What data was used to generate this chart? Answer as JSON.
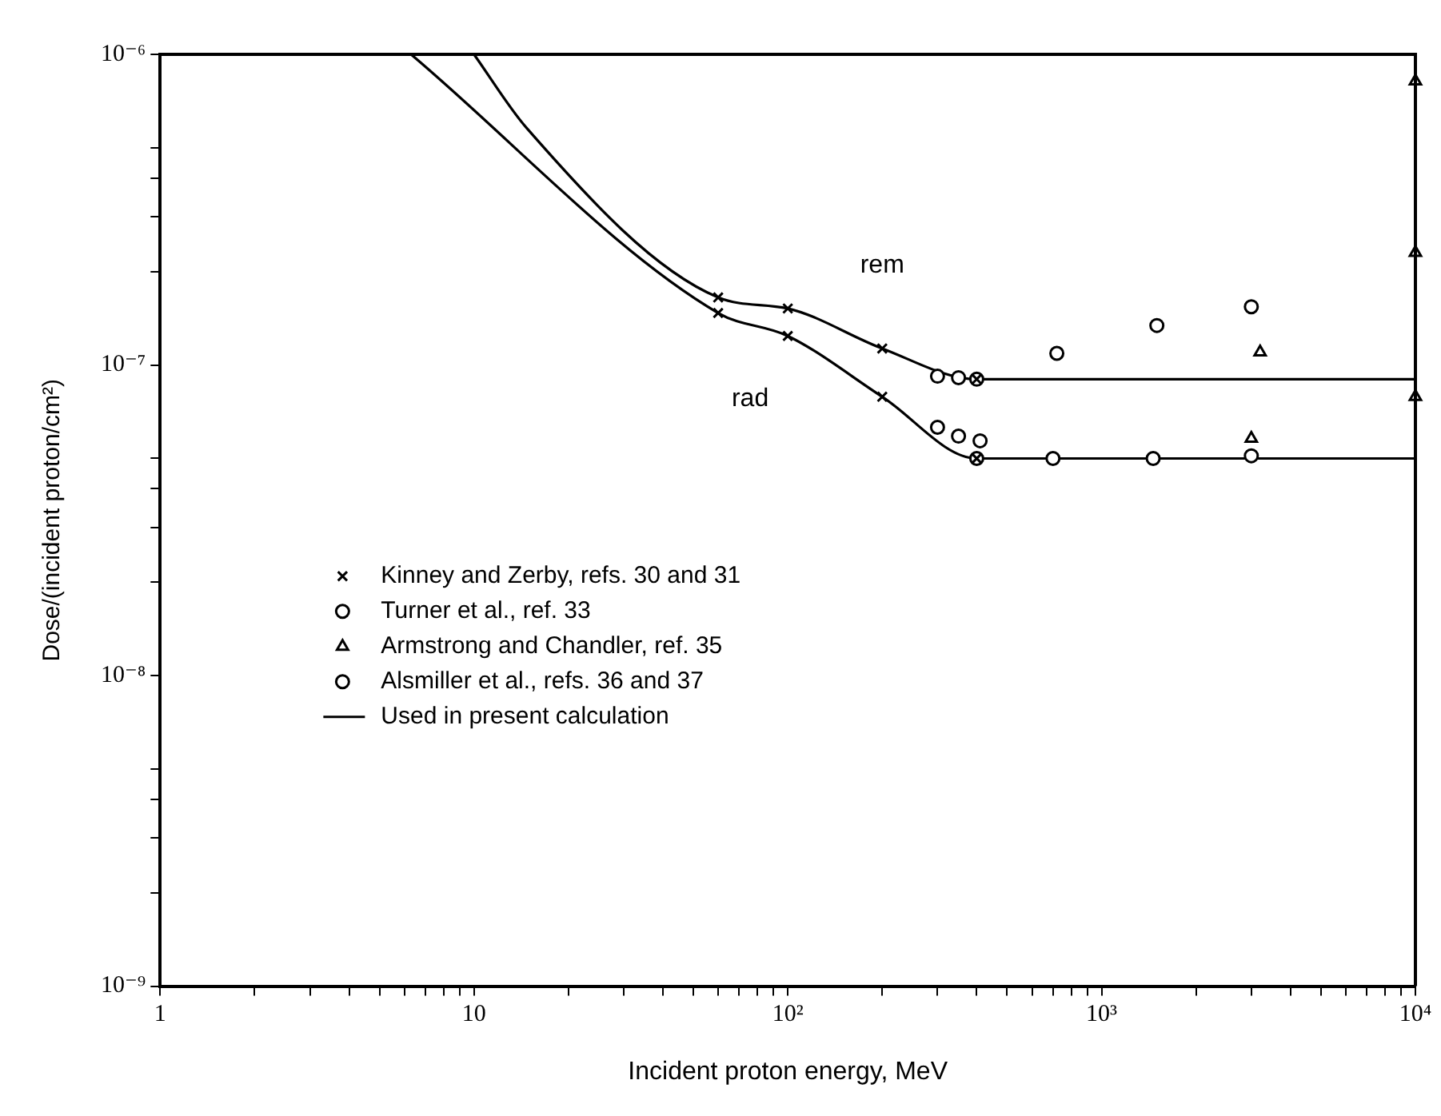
{
  "chart_data": {
    "type": "scatter",
    "xlabel": "Incident proton energy, MeV",
    "ylabel": "Dose/(incident proton/cm²)",
    "log": "xy",
    "grid": false,
    "legend": "left",
    "xlim": [
      1,
      10000
    ],
    "ylim": [
      1e-09,
      1e-06
    ],
    "xticks": [
      1,
      {
        "value": 2,
        "label": null
      },
      {
        "value": 3,
        "label": null
      },
      {
        "value": 4,
        "label": null
      },
      {
        "value": 5,
        "label": null
      },
      {
        "value": 6,
        "label": null
      },
      {
        "value": 7,
        "label": null
      },
      {
        "value": 8,
        "label": null
      },
      {
        "value": 9,
        "label": null
      },
      10,
      {
        "value": 20,
        "label": null
      },
      {
        "value": 30,
        "label": null
      },
      {
        "value": 40,
        "label": null
      },
      {
        "value": 50,
        "label": null
      },
      {
        "value": 60,
        "label": null
      },
      {
        "value": 70,
        "label": null
      },
      {
        "value": 80,
        "label": null
      },
      {
        "value": 90,
        "label": null
      },
      {
        "value": 100,
        "label": "10²"
      },
      {
        "value": 200,
        "label": null
      },
      {
        "value": 300,
        "label": null
      },
      {
        "value": 400,
        "label": null
      },
      {
        "value": 500,
        "label": null
      },
      {
        "value": 600,
        "label": null
      },
      {
        "value": 700,
        "label": null
      },
      {
        "value": 800,
        "label": null
      },
      {
        "value": 900,
        "label": null
      },
      {
        "value": 1000,
        "label": "10³"
      },
      {
        "value": 2000,
        "label": null
      },
      {
        "value": 3000,
        "label": null
      },
      {
        "value": 4000,
        "label": null
      },
      {
        "value": 5000,
        "label": null
      },
      {
        "value": 6000,
        "label": null
      },
      {
        "value": 7000,
        "label": null
      },
      {
        "value": 8000,
        "label": null
      },
      {
        "value": 9000,
        "label": null
      },
      {
        "value": 10000,
        "label": "10⁴"
      }
    ],
    "yticks": [
      {
        "value": 1e-09,
        "label": "10⁻⁹"
      },
      {
        "value": 2e-09,
        "label": null
      },
      {
        "value": 3e-09,
        "label": null
      },
      {
        "value": 4e-09,
        "label": null
      },
      {
        "value": 5e-09,
        "label": null
      },
      {
        "value": 1e-08,
        "label": "10⁻⁸"
      },
      {
        "value": 2e-08,
        "label": null
      },
      {
        "value": 3e-08,
        "label": null
      },
      {
        "value": 4e-08,
        "label": null
      },
      {
        "value": 5e-08,
        "label": null
      },
      {
        "value": 1e-07,
        "label": "10⁻⁷"
      },
      {
        "value": 2e-07,
        "label": null
      },
      {
        "value": 3e-07,
        "label": null
      },
      {
        "value": 4e-07,
        "label": null
      },
      {
        "value": 5e-07,
        "label": null
      },
      {
        "value": 1e-06,
        "label": "10⁻⁶"
      }
    ],
    "series": [
      {
        "name": "Kinney and Zerby, refs. 30 and 31",
        "type": "scatter",
        "marker": "cross",
        "color": "#000000",
        "x": [
          60,
          100,
          200,
          400,
          60,
          100,
          200,
          400
        ],
        "values": [
          1.65e-07,
          1.52e-07,
          1.13e-07,
          9e-08,
          1.47e-07,
          1.24e-07,
          7.9e-08,
          5e-08
        ]
      },
      {
        "name": "Turner et al., ref. 33",
        "type": "scatter",
        "marker": "circle",
        "color": "#000000",
        "x": [
          300,
          350,
          300,
          350,
          410
        ],
        "values": [
          9.2e-08,
          9.1e-08,
          6.3e-08,
          5.9e-08,
          5.7e-08
        ]
      },
      {
        "name": "Armstrong and Chandler, ref. 35",
        "type": "scatter",
        "marker": "triangle",
        "color": "#000000",
        "x": [
          3200,
          3000,
          10000,
          10000,
          10000
        ],
        "values": [
          1.1e-07,
          5.8e-08,
          8.2e-07,
          2.3e-07,
          7.9e-08
        ]
      },
      {
        "name": "Alsmiller et al., refs. 36 and 37",
        "type": "scatter",
        "marker": "circle",
        "color": "#000000",
        "x": [
          400,
          720,
          1500,
          3000,
          400,
          700,
          1460,
          3000
        ],
        "values": [
          9e-08,
          1.09e-07,
          1.34e-07,
          1.54e-07,
          5e-08,
          5e-08,
          5e-08,
          5.1e-08
        ]
      },
      {
        "name": "Used in present calculation",
        "type": "line",
        "marker": "none",
        "line_style": "solid",
        "color": "#000000",
        "x": [
          10,
          14.7,
          60,
          100,
          200,
          400,
          10000
        ],
        "values": [
          1e-06,
          5.8e-07,
          1.65e-07,
          1.52e-07,
          1.13e-07,
          9e-08,
          9e-08
        ]
      },
      {
        "type": "line",
        "marker": "none",
        "line_style": "solid",
        "color": "#000000",
        "x": [
          6.3,
          60,
          100,
          200,
          400,
          10000
        ],
        "values": [
          1e-06,
          1.47e-07,
          1.24e-07,
          7.9e-08,
          5e-08,
          5e-08
        ]
      }
    ],
    "annotations": [
      {
        "text": "rem",
        "x": 200,
        "y": 1.13e-07
      },
      {
        "text": "rad",
        "x": 60,
        "y": 1.47e-07
      }
    ]
  }
}
